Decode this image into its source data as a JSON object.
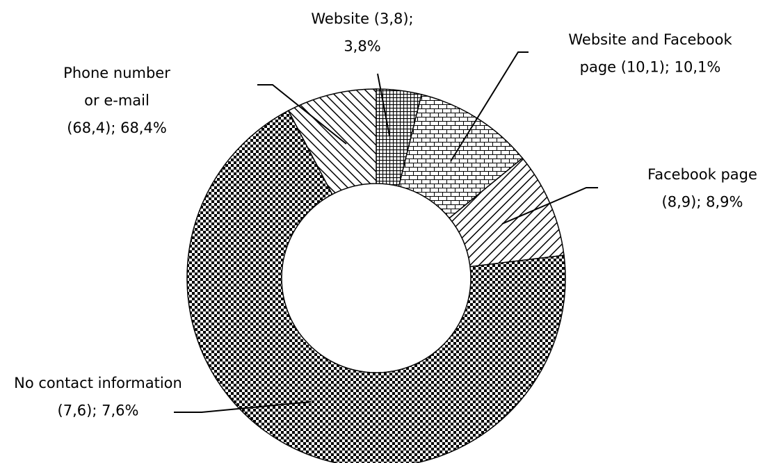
{
  "chart_data": {
    "type": "donut",
    "labels": [
      [
        "Website (3,8);",
        "3,8%"
      ],
      [
        "Website and Facebook",
        "page (10,1); 10,1%"
      ],
      [
        "Facebook page",
        "(8,9); 8,9%"
      ],
      [
        "Phone number",
        "or e-mail",
        "(68,4); 68,4%"
      ],
      [
        "No contact information",
        "(7,6); 7,6%"
      ]
    ],
    "values": [
      3.8,
      10.1,
      8.9,
      68.4,
      7.6
    ],
    "patterns": [
      "grid",
      "brick",
      "hatch-right",
      "checker",
      "hatch-left"
    ]
  }
}
